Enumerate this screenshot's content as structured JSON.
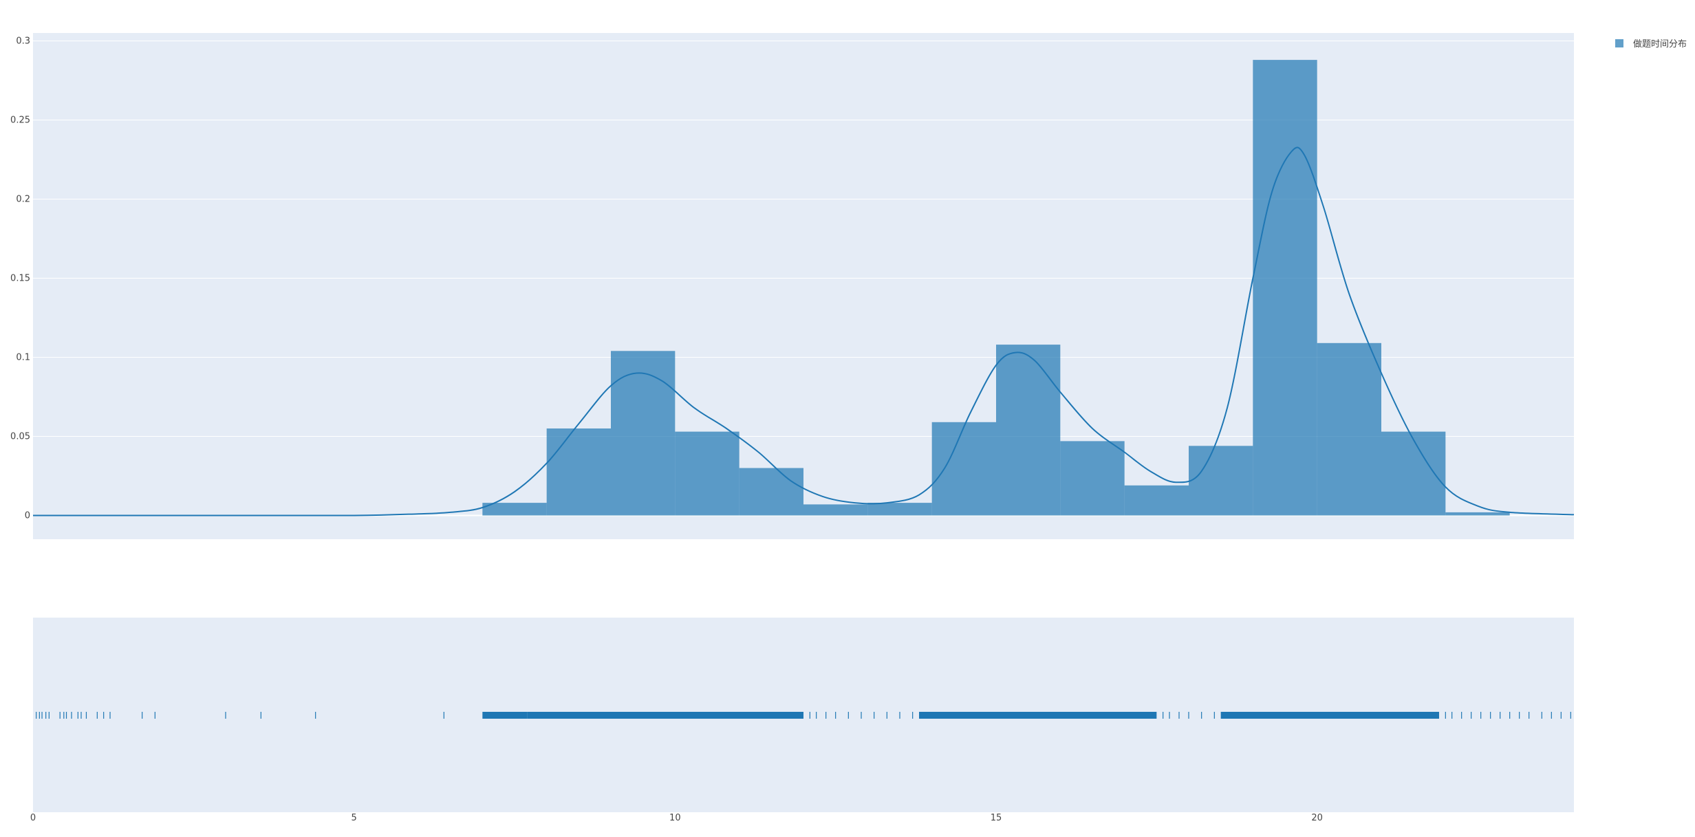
{
  "chart_data": {
    "type": "histogram",
    "series": [
      {
        "name": "做题时间分布",
        "color": "#1f77b4",
        "histogram": {
          "bin_edges": [
            7,
            8,
            9,
            10,
            11,
            12,
            13,
            14,
            15,
            16,
            17,
            18,
            19,
            20,
            21,
            22,
            23
          ],
          "density": [
            0.008,
            0.055,
            0.104,
            0.053,
            0.03,
            0.007,
            0.008,
            0.059,
            0.108,
            0.047,
            0.019,
            0.044,
            0.288,
            0.109,
            0.053,
            0.002
          ]
        },
        "kde": {
          "x": [
            0,
            3,
            5,
            6,
            6.5,
            7,
            7.5,
            8,
            8.5,
            9,
            9.4,
            9.8,
            10.3,
            10.8,
            11.3,
            11.8,
            12.3,
            12.8,
            13.3,
            13.8,
            14.2,
            14.6,
            15,
            15.3,
            15.6,
            16,
            16.5,
            17,
            17.4,
            17.8,
            18.2,
            18.6,
            19,
            19.3,
            19.6,
            19.8,
            20.1,
            20.5,
            21,
            21.5,
            22,
            22.5,
            23,
            24
          ],
          "y": [
            0,
            0,
            0,
            0.001,
            0.002,
            0.005,
            0.015,
            0.033,
            0.058,
            0.082,
            0.09,
            0.085,
            0.068,
            0.055,
            0.04,
            0.022,
            0.012,
            0.008,
            0.008,
            0.013,
            0.03,
            0.065,
            0.095,
            0.103,
            0.098,
            0.078,
            0.055,
            0.04,
            0.028,
            0.021,
            0.028,
            0.068,
            0.15,
            0.205,
            0.23,
            0.228,
            0.195,
            0.14,
            0.09,
            0.048,
            0.018,
            0.006,
            0.002,
            0.0005
          ]
        },
        "rug_dense_ranges": [
          [
            7.0,
            7.7
          ],
          [
            7.7,
            12.0
          ],
          [
            13.8,
            17.5
          ],
          [
            18.5,
            21.9
          ]
        ],
        "rug_sparse": [
          0.05,
          0.1,
          0.14,
          0.2,
          0.25,
          0.42,
          0.48,
          0.52,
          0.6,
          0.7,
          0.75,
          0.83,
          1.0,
          1.1,
          1.2,
          1.7,
          1.9,
          3.0,
          3.55,
          4.4,
          6.4,
          12.1,
          12.2,
          12.35,
          12.5,
          12.7,
          12.9,
          13.1,
          13.3,
          13.5,
          13.7,
          17.6,
          17.7,
          17.85,
          18.0,
          18.2,
          18.4,
          22.0,
          22.1,
          22.25,
          22.4,
          22.55,
          22.7,
          22.85,
          23.0,
          23.15,
          23.3,
          23.5,
          23.65,
          23.8,
          23.95
        ]
      }
    ],
    "xlim": [
      0,
      24
    ],
    "xticks": [
      "0",
      "5",
      "10",
      "15",
      "20"
    ],
    "xtick_values": [
      0,
      5,
      10,
      15,
      20
    ],
    "ylim": [
      -0.015,
      0.305
    ],
    "yticks": [
      "0",
      "0.05",
      "0.1",
      "0.15",
      "0.2",
      "0.25",
      "0.3"
    ],
    "ytick_values": [
      0,
      0.05,
      0.1,
      0.15,
      0.2,
      0.25,
      0.3
    ],
    "grid": true,
    "legend": "top-right",
    "colors": {
      "plot_bg": "#e5ecf6",
      "grid": "#ffffff",
      "bar": "#1f77b4",
      "line": "#1f77b4"
    }
  }
}
